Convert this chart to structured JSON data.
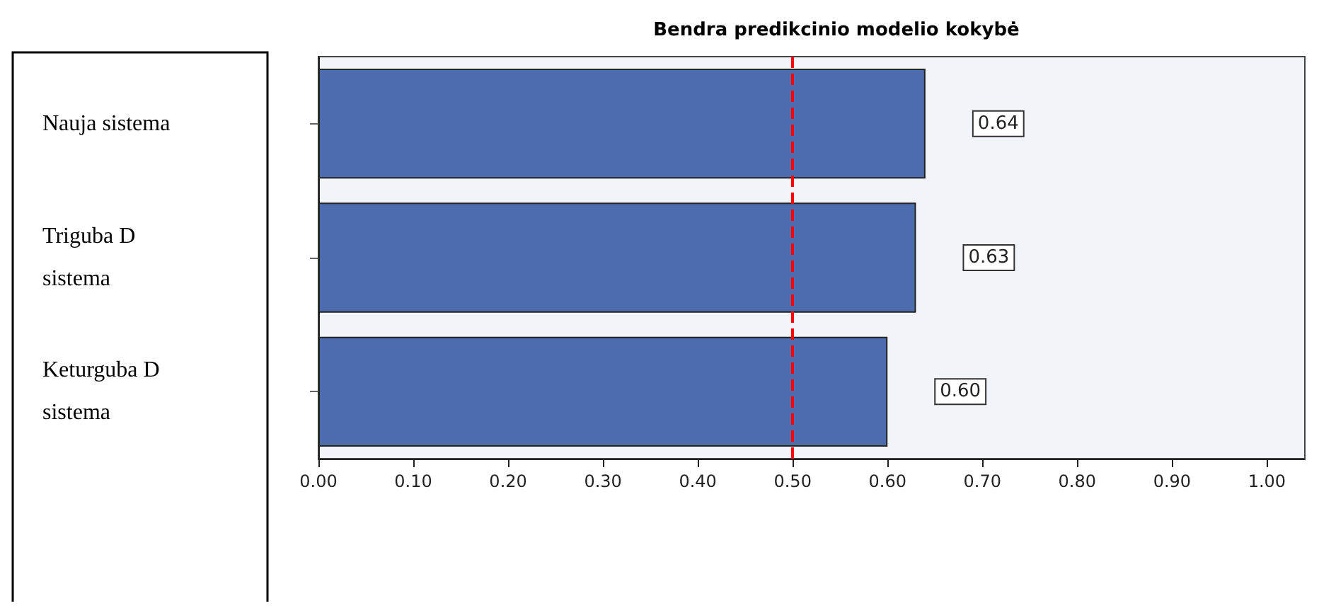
{
  "chart_data": {
    "type": "bar",
    "orientation": "horizontal",
    "title": "Bendra predikcinio modelio kokybė",
    "categories": [
      "Nauja sistema",
      "Triguba D sistema",
      "Keturguba D sistema"
    ],
    "values": [
      0.64,
      0.63,
      0.6
    ],
    "value_labels": [
      "0.64",
      "0.63",
      "0.60"
    ],
    "color": "#4c6cae",
    "xlim": [
      0,
      1.04
    ],
    "xticks": [
      {
        "value": 0,
        "label": "0.00"
      },
      {
        "value": 0.1,
        "label": "0.10"
      },
      {
        "value": 0.2,
        "label": "0.20"
      },
      {
        "value": 0.3,
        "label": "0.30"
      },
      {
        "value": 0.4,
        "label": "0.40"
      },
      {
        "value": 0.5,
        "label": "0.50"
      },
      {
        "value": 0.6,
        "label": "0.60"
      },
      {
        "value": 0.7,
        "label": "0.70"
      },
      {
        "value": 0.8,
        "label": "0.80"
      },
      {
        "value": 0.9,
        "label": "0.90"
      },
      {
        "value": 1,
        "label": "1.00"
      }
    ],
    "ref_lines": [
      {
        "axis": "x",
        "value": 0.5,
        "color": "#ff0000",
        "line_style": "dashed"
      }
    ],
    "grid": false
  }
}
